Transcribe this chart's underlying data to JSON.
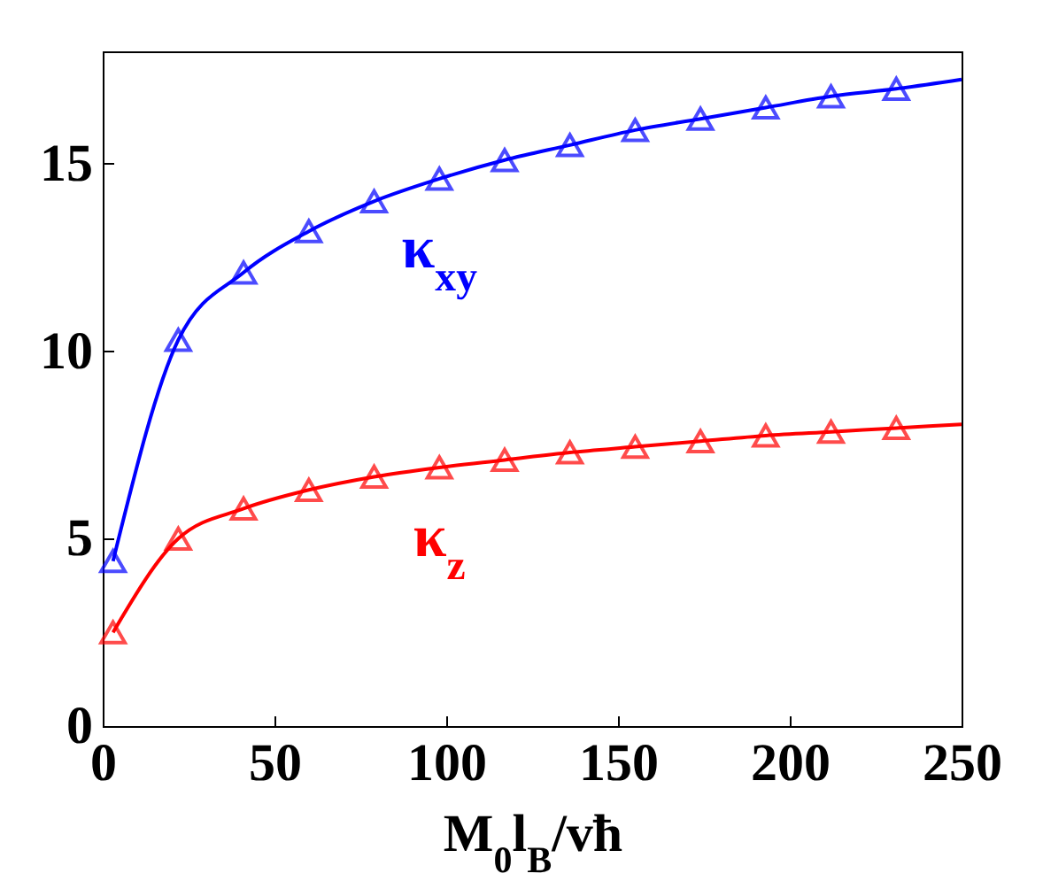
{
  "chart_data": {
    "type": "line",
    "xlabel": "M$_{0}$l$_{B}$/vħ",
    "xlim": [
      0,
      250
    ],
    "xticks": [
      0,
      50,
      100,
      150,
      200,
      250
    ],
    "ylim": [
      0,
      18
    ],
    "yticks": [
      0,
      5,
      10,
      15
    ],
    "series": [
      {
        "color": "#0000ff",
        "marker": "none",
        "x": [
          3,
          22,
          41,
          60,
          79,
          98,
          117,
          136,
          155,
          174,
          193,
          212,
          231,
          250
        ],
        "values": [
          4.4,
          10.3,
          12.1,
          13.2,
          14.0,
          14.6,
          15.1,
          15.5,
          15.9,
          16.2,
          16.5,
          16.8,
          17.0,
          17.25
        ]
      },
      {
        "type": "scatter",
        "name": "κ$_{xy}$",
        "color": "#0000ff",
        "marker": "triangle",
        "x": [
          3,
          22,
          41,
          60,
          79,
          98,
          117,
          136,
          155,
          174,
          193,
          212,
          231
        ],
        "values": [
          4.4,
          10.3,
          12.1,
          13.2,
          14.0,
          14.6,
          15.1,
          15.5,
          15.9,
          16.2,
          16.5,
          16.8,
          17.0
        ]
      },
      {
        "color": "#ff0000",
        "marker": "none",
        "x": [
          3,
          22,
          41,
          60,
          79,
          98,
          117,
          136,
          155,
          174,
          193,
          212,
          231,
          250
        ],
        "values": [
          2.5,
          5.0,
          5.8,
          6.3,
          6.65,
          6.9,
          7.1,
          7.3,
          7.45,
          7.6,
          7.75,
          7.85,
          7.95,
          8.05
        ]
      },
      {
        "type": "scatter",
        "name": "κ$_{z}$",
        "color": "#ff0000",
        "marker": "triangle",
        "x": [
          3,
          22,
          41,
          60,
          79,
          98,
          117,
          136,
          155,
          174,
          193,
          212,
          231
        ],
        "values": [
          2.5,
          5.0,
          5.8,
          6.3,
          6.65,
          6.9,
          7.1,
          7.3,
          7.45,
          7.6,
          7.75,
          7.85,
          7.95
        ]
      }
    ]
  }
}
